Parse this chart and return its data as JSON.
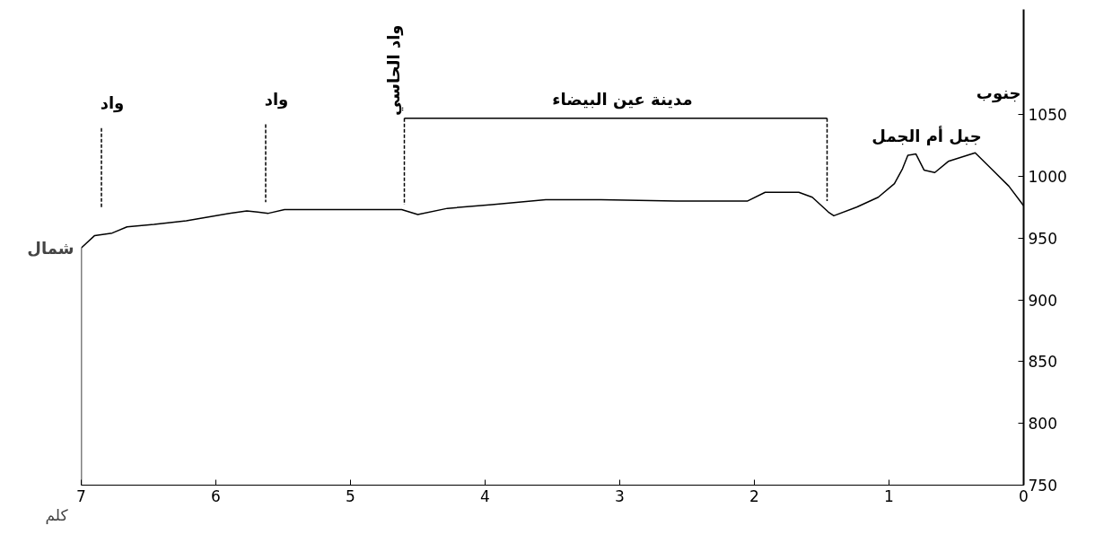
{
  "chart_data": {
    "type": "line",
    "xlabel": "كلم",
    "xlim": [
      7,
      0
    ],
    "xticks": [
      7,
      6,
      5,
      4,
      3,
      2,
      1,
      0
    ],
    "ylim": [
      750,
      1135
    ],
    "yticks": [
      750,
      800,
      850,
      900,
      950,
      1000,
      1050
    ],
    "grid": false,
    "marker": "none",
    "series": [
      {
        "color": "#000000",
        "line_style": "solid",
        "x": [
          7,
          7,
          6.9,
          6.77,
          6.66,
          6.46,
          6.22,
          5.9,
          5.77,
          5.69,
          5.61,
          5.49,
          5.25,
          4.76,
          4.62,
          4.5,
          4.28,
          3.95,
          3.55,
          3.14,
          2.58,
          2.05,
          1.92,
          1.67,
          1.57,
          1.45,
          1.41,
          1.24,
          1.08,
          0.96,
          0.9,
          0.86,
          0.8,
          0.74,
          0.66,
          0.56,
          0.36,
          0.23,
          0.11,
          0.02,
          0
        ],
        "values": [
          750,
          942,
          952,
          954,
          959,
          961,
          964,
          970,
          972,
          971,
          970,
          973,
          973,
          973,
          973,
          969,
          974,
          977,
          981,
          981,
          980,
          980,
          987,
          987,
          983,
          971,
          968,
          975,
          983,
          994,
          1006,
          1017,
          1018,
          1005,
          1003,
          1012,
          1019,
          1005,
          992,
          979,
          976
        ]
      },
      {
        "color": "#000000",
        "line_style": "dashed",
        "x": [
          6.85,
          6.85
        ],
        "values": [
          1039,
          974
        ]
      },
      {
        "color": "#000000",
        "line_style": "dashed",
        "x": [
          5.63,
          5.63
        ],
        "values": [
          1042,
          979
        ]
      },
      {
        "color": "#000000",
        "line_style": "dashed",
        "x": [
          4.6,
          4.6
        ],
        "values": [
          1047,
          977
        ]
      },
      {
        "color": "#000000",
        "line_style": "solid",
        "x": [
          4.6,
          1.46
        ],
        "values": [
          1047,
          1047
        ]
      },
      {
        "color": "#000000",
        "line_style": "dashed",
        "x": [
          1.46,
          1.46
        ],
        "values": [
          1047,
          980
        ]
      }
    ],
    "annotations": [
      "واد",
      "واد",
      "واد الحاسي",
      "مدينة عين البيضاء",
      "جبل أم الجمل",
      "شمال",
      "جنوب"
    ]
  }
}
